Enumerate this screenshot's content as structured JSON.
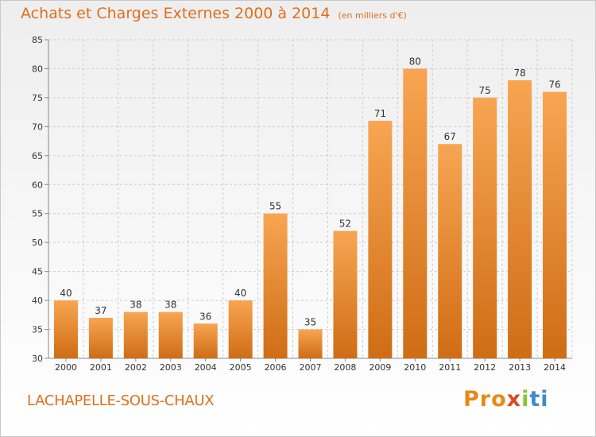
{
  "chart_data": {
    "type": "bar",
    "title": "Achats et Charges Externes 2000 à 2014",
    "subtitle": "(en milliers d'€)",
    "categories": [
      "2000",
      "2001",
      "2002",
      "2003",
      "2004",
      "2005",
      "2006",
      "2007",
      "2008",
      "2009",
      "2010",
      "2011",
      "2012",
      "2013",
      "2014"
    ],
    "values": [
      40,
      37,
      38,
      38,
      36,
      40,
      55,
      35,
      52,
      71,
      80,
      67,
      75,
      78,
      76
    ],
    "xlabel": "",
    "ylabel": "",
    "ylim": [
      30,
      85
    ],
    "yticks": [
      30,
      35,
      40,
      45,
      50,
      55,
      60,
      65,
      70,
      75,
      80,
      85
    ],
    "grid": true,
    "bar_color": "#f09a46"
  },
  "footer": {
    "commune": "LACHAPELLE-SOUS-CHAUX",
    "logo_parts": [
      "Pro",
      "x",
      "i",
      "ti"
    ]
  },
  "colors": {
    "accent": "#e06f1c"
  }
}
